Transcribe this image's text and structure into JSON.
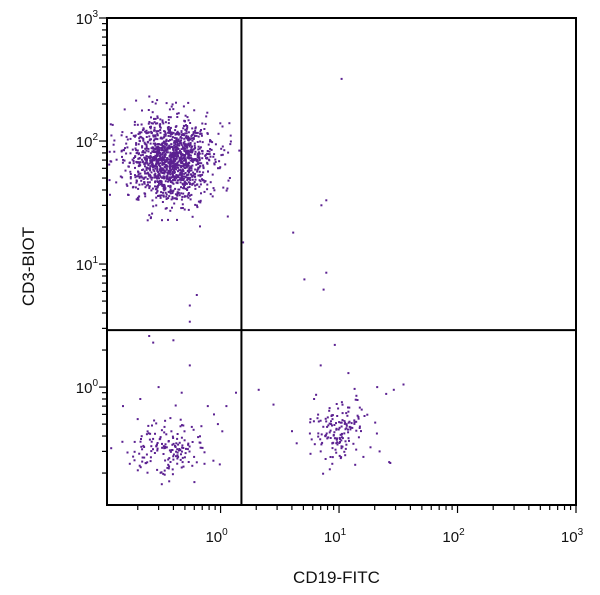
{
  "chart_data": {
    "type": "scatter",
    "title": "",
    "xlabel": "CD19-FITC",
    "ylabel": "CD3-BIOT",
    "x_scale": "log",
    "y_scale": "log",
    "xlim": [
      0.11,
      1000
    ],
    "ylim": [
      0.11,
      1000
    ],
    "x_ticks": [
      {
        "value": 1,
        "base": "10",
        "exp": "0"
      },
      {
        "value": 10,
        "base": "10",
        "exp": "1"
      },
      {
        "value": 100,
        "base": "10",
        "exp": "2"
      },
      {
        "value": 1000,
        "base": "10",
        "exp": "3"
      }
    ],
    "y_ticks": [
      {
        "value": 1,
        "base": "10",
        "exp": "0"
      },
      {
        "value": 10,
        "base": "10",
        "exp": "1"
      },
      {
        "value": 100,
        "base": "10",
        "exp": "2"
      },
      {
        "value": 1000,
        "base": "10",
        "exp": "3"
      }
    ],
    "quadrant_gate": {
      "x": 1.5,
      "y": 2.9
    },
    "grid": false,
    "legend": "none",
    "point_color": "#5b2191",
    "populations": [
      {
        "center": [
          0.38,
          70
        ],
        "log_spread": [
          0.18,
          0.17
        ],
        "count": 1400
      },
      {
        "center": [
          0.36,
          0.31
        ],
        "log_spread": [
          0.18,
          0.12
        ],
        "count": 170
      },
      {
        "center": [
          10,
          0.42
        ],
        "log_spread": [
          0.14,
          0.13
        ],
        "count": 160
      }
    ],
    "points": [
      [
        0.25,
        2.6
      ],
      [
        0.27,
        2.3
      ],
      [
        0.4,
        2.4
      ],
      [
        0.55,
        3.4
      ],
      [
        0.63,
        5.6
      ],
      [
        0.55,
        4.6
      ],
      [
        0.21,
        0.8
      ],
      [
        0.3,
        1.0
      ],
      [
        0.47,
        0.9
      ],
      [
        0.55,
        1.5
      ],
      [
        0.15,
        0.7
      ],
      [
        0.78,
        0.7
      ],
      [
        0.88,
        0.6
      ],
      [
        0.95,
        0.5
      ],
      [
        1.12,
        0.7
      ],
      [
        1.35,
        0.9
      ],
      [
        1.55,
        15
      ],
      [
        2.1,
        0.95
      ],
      [
        2.8,
        0.72
      ],
      [
        4.1,
        18
      ],
      [
        5.1,
        7.5
      ],
      [
        7.1,
        30
      ],
      [
        7.8,
        33
      ],
      [
        7.4,
        6.2
      ],
      [
        7.8,
        8.5
      ],
      [
        10.5,
        320
      ],
      [
        9.2,
        2.2
      ],
      [
        7.0,
        1.5
      ],
      [
        12,
        1.3
      ],
      [
        14,
        0.85
      ],
      [
        21,
        1.0
      ],
      [
        25,
        0.88
      ],
      [
        29,
        0.95
      ],
      [
        35,
        1.05
      ],
      [
        22,
        0.3
      ]
    ]
  }
}
